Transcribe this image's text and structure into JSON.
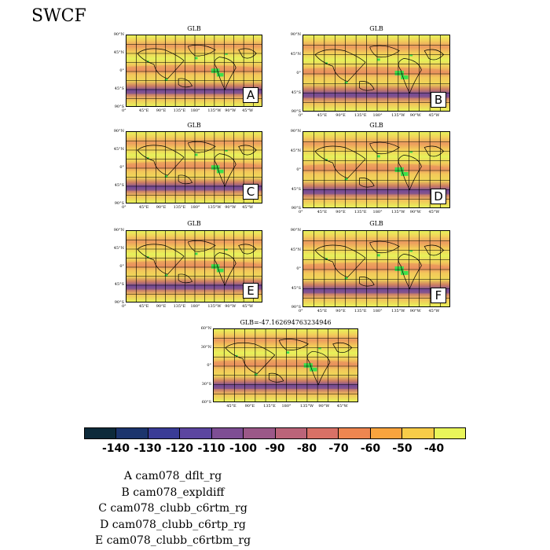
{
  "title": "SWCF",
  "panels": [
    {
      "title": "GLB",
      "letter": "A",
      "lat_ticks": [
        "90°N",
        "45°N",
        "0°",
        "45°S",
        "90°S"
      ],
      "lon_ticks": [
        "0°",
        "45°E",
        "90°E",
        "135°E",
        "180°",
        "135°W",
        "90°W",
        "45°W"
      ]
    },
    {
      "title": "GLB",
      "letter": "B",
      "lat_ticks": [
        "90°N",
        "45°N",
        "0°",
        "45°S",
        "90°S"
      ],
      "lon_ticks": [
        "0°",
        "45°E",
        "90°E",
        "135°E",
        "180°",
        "135°W",
        "90°W",
        "45°W"
      ]
    },
    {
      "title": "GLB",
      "letter": "C",
      "lat_ticks": [
        "90°N",
        "45°N",
        "0°",
        "45°S",
        "90°S"
      ],
      "lon_ticks": [
        "0°",
        "45°E",
        "90°E",
        "135°E",
        "180°",
        "135°W",
        "90°W",
        "45°W"
      ]
    },
    {
      "title": "GLB",
      "letter": "D",
      "lat_ticks": [
        "90°N",
        "45°N",
        "0°",
        "45°S",
        "90°S"
      ],
      "lon_ticks": [
        "0°",
        "45°E",
        "90°E",
        "135°E",
        "180°",
        "135°W",
        "90°W",
        "45°W"
      ]
    },
    {
      "title": "GLB",
      "letter": "E",
      "lat_ticks": [
        "90°N",
        "45°N",
        "0°",
        "45°S",
        "90°S"
      ],
      "lon_ticks": [
        "0°",
        "45°E",
        "90°E",
        "135°E",
        "180°",
        "135°W",
        "90°W",
        "45°W"
      ]
    },
    {
      "title": "GLB",
      "letter": "F",
      "lat_ticks": [
        "90°N",
        "45°N",
        "0°",
        "45°S",
        "90°S"
      ],
      "lon_ticks": [
        "0°",
        "45°E",
        "90°E",
        "135°E",
        "180°",
        "135°W",
        "90°W",
        "45°W"
      ]
    },
    {
      "title": "GLB=-47.162694763234946",
      "letter": "",
      "lat_ticks": [
        "60°N",
        "30°N",
        "0°",
        "30°S",
        "60°S"
      ],
      "lon_ticks": [
        "45°E",
        "90°E",
        "135°E",
        "180°",
        "135°W",
        "90°W",
        "45°W"
      ]
    }
  ],
  "colorbar": {
    "colors": [
      "#0d2a3a",
      "#1c356d",
      "#3a3c96",
      "#5c46a0",
      "#7e4e94",
      "#9b5888",
      "#bb6479",
      "#d87166",
      "#ee8650",
      "#f8a43e",
      "#f7cc48",
      "#e9f55a"
    ],
    "labels": [
      "-140",
      "-130",
      "-120",
      "-110",
      "-100",
      "-90",
      "-80",
      "-70",
      "-60",
      "-50",
      "-40"
    ]
  },
  "legend": [
    "A  cam078_dflt_rg",
    "B  cam078_expldiff",
    "C  cam078_clubb_c6rtm_rg",
    "D  cam078_clubb_c6rtp_rg",
    "E  cam078_clubb_c6rtbm_rg"
  ],
  "chart_data": {
    "type": "heatmap",
    "title": "SWCF",
    "variable": "SWCF",
    "panel_count": 7,
    "colorbar_levels": [
      -140,
      -130,
      -120,
      -110,
      -100,
      -90,
      -80,
      -70,
      -60,
      -50,
      -40
    ]
  }
}
